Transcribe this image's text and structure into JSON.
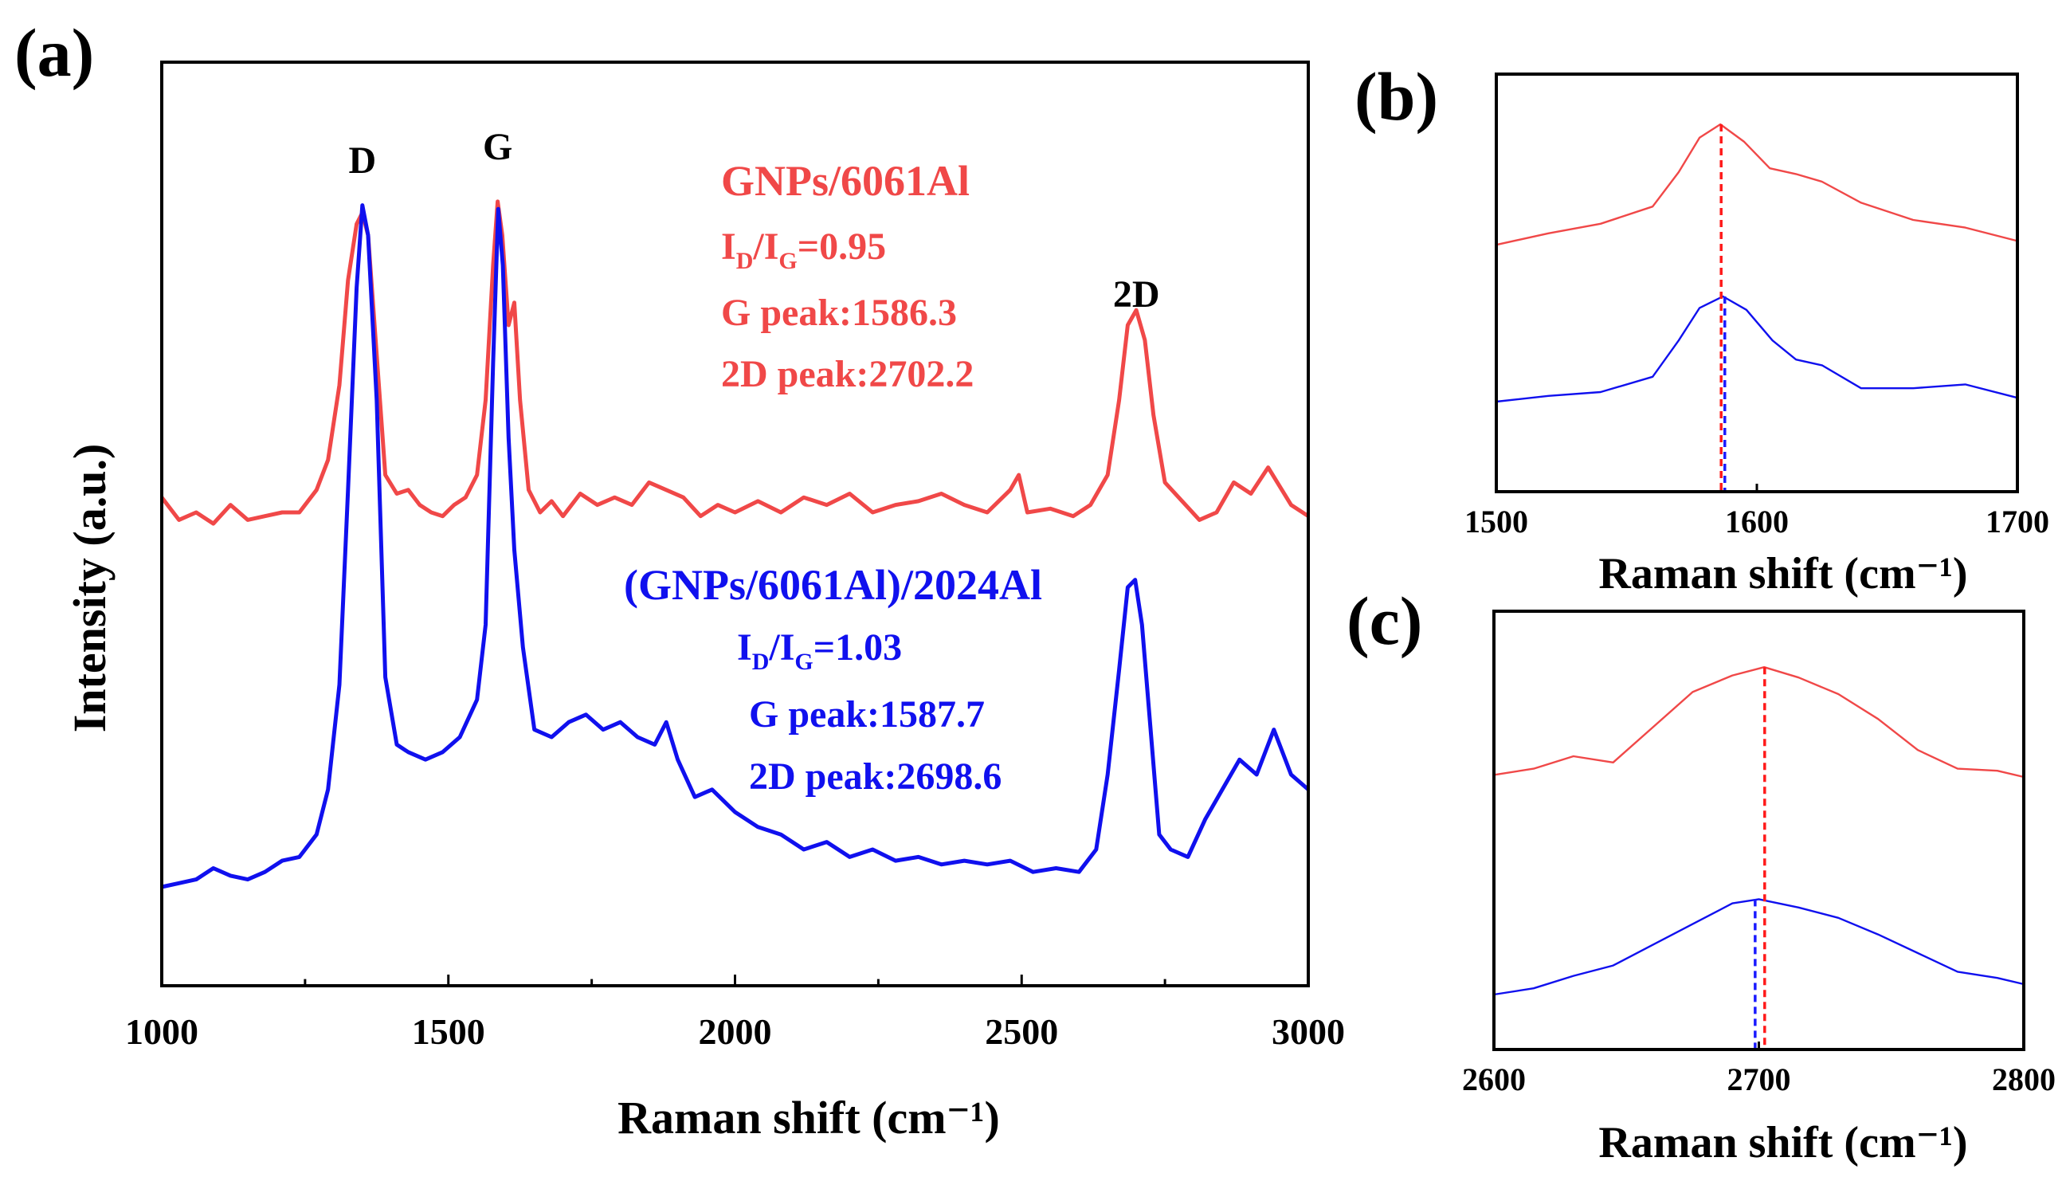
{
  "colors": {
    "red": "#f04848",
    "blue": "#1010ee",
    "red_line": "#ff1a1a",
    "blue_line": "#1a1aff",
    "frame": "#000000"
  },
  "chart_data": [
    {
      "panel": "(a)",
      "type": "line",
      "xlabel": "Raman shift (cm⁻¹)",
      "ylabel": "Intensity (a.u.)",
      "xlim": [
        1000,
        3000
      ],
      "ylim": [
        0,
        1
      ],
      "xticks": [
        1000,
        1500,
        2000,
        2500,
        3000
      ],
      "yticks_shown": false,
      "peak_labels": [
        {
          "text": "D",
          "x": 1350
        },
        {
          "text": "G",
          "x": 1586
        },
        {
          "text": "2D",
          "x": 2700
        }
      ],
      "series": [
        {
          "name": "GNPs/6061Al",
          "color": "#f04848",
          "annotations": {
            "ratio_main": "I",
            "ratio_sub_d": "D",
            "ratio_slash": "/I",
            "ratio_sub_g": "G",
            "ratio_value": "=0.95",
            "g_peak": "G peak:1586.3",
            "d2_peak": "2D peak:2702.2"
          },
          "x": [
            1000,
            1030,
            1060,
            1090,
            1120,
            1150,
            1180,
            1210,
            1240,
            1270,
            1290,
            1310,
            1325,
            1340,
            1350,
            1360,
            1375,
            1390,
            1410,
            1430,
            1450,
            1470,
            1490,
            1510,
            1530,
            1550,
            1565,
            1578,
            1586,
            1594,
            1605,
            1615,
            1625,
            1640,
            1660,
            1680,
            1700,
            1730,
            1760,
            1790,
            1820,
            1850,
            1880,
            1910,
            1940,
            1970,
            2000,
            2040,
            2080,
            2120,
            2160,
            2200,
            2240,
            2280,
            2320,
            2360,
            2400,
            2440,
            2480,
            2495,
            2510,
            2550,
            2590,
            2620,
            2650,
            2670,
            2685,
            2700,
            2715,
            2730,
            2750,
            2780,
            2810,
            2840,
            2870,
            2900,
            2930,
            2950,
            2970,
            3000
          ],
          "y": [
            0.57,
            0.54,
            0.55,
            0.535,
            0.56,
            0.54,
            0.545,
            0.55,
            0.55,
            0.58,
            0.62,
            0.72,
            0.86,
            0.935,
            0.95,
            0.92,
            0.76,
            0.6,
            0.575,
            0.58,
            0.56,
            0.55,
            0.545,
            0.56,
            0.57,
            0.6,
            0.7,
            0.88,
            0.965,
            0.92,
            0.8,
            0.83,
            0.7,
            0.58,
            0.55,
            0.565,
            0.545,
            0.575,
            0.56,
            0.57,
            0.56,
            0.59,
            0.58,
            0.57,
            0.545,
            0.56,
            0.55,
            0.565,
            0.55,
            0.57,
            0.56,
            0.575,
            0.55,
            0.56,
            0.565,
            0.575,
            0.56,
            0.55,
            0.58,
            0.6,
            0.55,
            0.555,
            0.545,
            0.56,
            0.6,
            0.7,
            0.8,
            0.82,
            0.78,
            0.68,
            0.59,
            0.565,
            0.54,
            0.55,
            0.59,
            0.575,
            0.61,
            0.585,
            0.56,
            0.545
          ]
        },
        {
          "name": "(GNPs/6061Al)/2024Al",
          "color": "#1010ee",
          "annotations": {
            "ratio_main": "I",
            "ratio_sub_d": "D",
            "ratio_slash": "/I",
            "ratio_sub_g": "G",
            "ratio_value": "=1.03",
            "g_peak": "G peak:1587.7",
            "d2_peak": "2D peak:2698.6"
          },
          "x": [
            1000,
            1030,
            1060,
            1090,
            1120,
            1150,
            1180,
            1210,
            1240,
            1270,
            1290,
            1310,
            1325,
            1340,
            1350,
            1360,
            1375,
            1390,
            1410,
            1430,
            1460,
            1490,
            1520,
            1550,
            1565,
            1578,
            1587,
            1595,
            1605,
            1615,
            1630,
            1650,
            1680,
            1710,
            1740,
            1770,
            1800,
            1830,
            1860,
            1880,
            1900,
            1930,
            1960,
            2000,
            2040,
            2080,
            2120,
            2160,
            2200,
            2240,
            2280,
            2320,
            2360,
            2400,
            2440,
            2480,
            2520,
            2560,
            2600,
            2630,
            2650,
            2670,
            2685,
            2698,
            2710,
            2725,
            2740,
            2760,
            2790,
            2820,
            2850,
            2880,
            2910,
            2940,
            2970,
            3000
          ],
          "y": [
            0.05,
            0.055,
            0.06,
            0.075,
            0.065,
            0.06,
            0.07,
            0.085,
            0.09,
            0.12,
            0.18,
            0.32,
            0.58,
            0.85,
            0.96,
            0.92,
            0.7,
            0.33,
            0.24,
            0.23,
            0.22,
            0.23,
            0.25,
            0.3,
            0.4,
            0.75,
            0.955,
            0.88,
            0.65,
            0.5,
            0.37,
            0.26,
            0.25,
            0.27,
            0.28,
            0.26,
            0.27,
            0.25,
            0.24,
            0.27,
            0.22,
            0.17,
            0.18,
            0.15,
            0.13,
            0.12,
            0.1,
            0.11,
            0.09,
            0.1,
            0.085,
            0.09,
            0.08,
            0.085,
            0.08,
            0.085,
            0.07,
            0.075,
            0.07,
            0.1,
            0.2,
            0.34,
            0.45,
            0.46,
            0.4,
            0.26,
            0.12,
            0.1,
            0.09,
            0.14,
            0.18,
            0.22,
            0.2,
            0.26,
            0.2,
            0.18
          ]
        }
      ]
    },
    {
      "panel": "(b)",
      "type": "line",
      "xlabel": "Raman shift (cm⁻¹)",
      "xlim": [
        1500,
        1700
      ],
      "ylim": [
        0,
        1
      ],
      "xticks": [
        1500,
        1600,
        1700
      ],
      "series": [
        {
          "name": "GNPs/6061Al",
          "color": "#f04848",
          "peak_marker": 1586.3,
          "x": [
            1500,
            1520,
            1540,
            1560,
            1570,
            1578,
            1586,
            1595,
            1605,
            1615,
            1625,
            1640,
            1660,
            1680,
            1700
          ],
          "y": [
            0.61,
            0.64,
            0.665,
            0.71,
            0.8,
            0.89,
            0.925,
            0.88,
            0.81,
            0.795,
            0.775,
            0.72,
            0.675,
            0.655,
            0.62
          ]
        },
        {
          "name": "(GNPs/6061Al)/2024Al",
          "color": "#1010ee",
          "peak_marker": 1587.7,
          "x": [
            1500,
            1520,
            1540,
            1560,
            1570,
            1578,
            1587,
            1596,
            1606,
            1615,
            1625,
            1640,
            1660,
            1680,
            1700
          ],
          "y": [
            0.2,
            0.215,
            0.225,
            0.265,
            0.36,
            0.445,
            0.475,
            0.44,
            0.36,
            0.31,
            0.295,
            0.235,
            0.235,
            0.245,
            0.21
          ]
        }
      ]
    },
    {
      "panel": "(c)",
      "type": "line",
      "xlabel": "Raman shift (cm⁻¹)",
      "xlim": [
        2600,
        2800
      ],
      "ylim": [
        0,
        1
      ],
      "xticks": [
        2600,
        2700,
        2800
      ],
      "series": [
        {
          "name": "GNPs/6061Al",
          "color": "#f04848",
          "peak_marker": 2702.2,
          "x": [
            2600,
            2615,
            2630,
            2645,
            2660,
            2675,
            2690,
            2702,
            2715,
            2730,
            2745,
            2760,
            2775,
            2790,
            2800
          ],
          "y": [
            0.63,
            0.645,
            0.675,
            0.66,
            0.745,
            0.83,
            0.87,
            0.89,
            0.865,
            0.825,
            0.765,
            0.69,
            0.645,
            0.64,
            0.625
          ]
        },
        {
          "name": "(GNPs/6061Al)/2024Al",
          "color": "#1010ee",
          "peak_marker": 2698.6,
          "x": [
            2600,
            2615,
            2630,
            2645,
            2660,
            2675,
            2690,
            2700,
            2715,
            2730,
            2745,
            2760,
            2775,
            2790,
            2800
          ],
          "y": [
            0.1,
            0.115,
            0.145,
            0.17,
            0.22,
            0.27,
            0.32,
            0.33,
            0.31,
            0.285,
            0.245,
            0.2,
            0.155,
            0.14,
            0.125
          ]
        }
      ]
    }
  ],
  "panel_labels": {
    "a": "(a)",
    "b": "(b)",
    "c": "(c)"
  }
}
